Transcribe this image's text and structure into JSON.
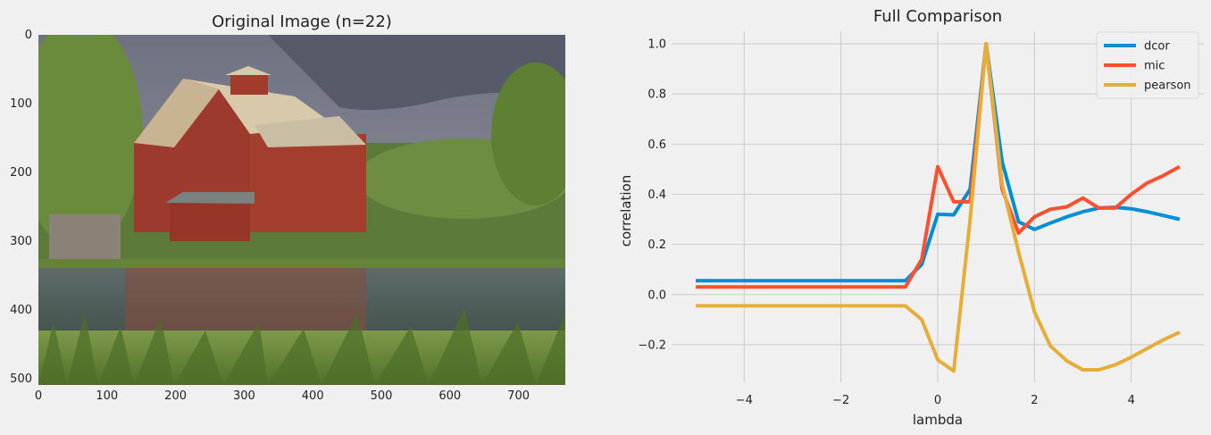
{
  "left_panel": {
    "title": "Original Image (n=22)",
    "image_description_icon": "barn-landscape-photo",
    "xticks": [
      "0",
      "100",
      "200",
      "300",
      "400",
      "500",
      "600",
      "700"
    ],
    "yticks": [
      "0",
      "100",
      "200",
      "300",
      "400",
      "500"
    ]
  },
  "chart_data": {
    "type": "line",
    "title": "Full Comparison",
    "xlabel": "lambda",
    "ylabel": "correlation",
    "xlim": [
      -5.5,
      5.5
    ],
    "ylim": [
      -0.35,
      1.05
    ],
    "xticks": [
      -4,
      -2,
      0,
      2,
      4
    ],
    "xtick_labels": [
      "−4",
      "−2",
      "0",
      "2",
      "4"
    ],
    "yticks": [
      -0.2,
      0.0,
      0.2,
      0.4,
      0.6,
      0.8,
      1.0
    ],
    "ytick_labels": [
      "−0.2",
      "0.0",
      "0.2",
      "0.4",
      "0.6",
      "0.8",
      "1.0"
    ],
    "grid": true,
    "legend_position": "top-right",
    "x": [
      -5.0,
      -4.67,
      -4.33,
      -4.0,
      -3.67,
      -3.33,
      -3.0,
      -2.67,
      -2.33,
      -2.0,
      -1.67,
      -1.33,
      -1.0,
      -0.67,
      -0.33,
      0.0,
      0.33,
      0.67,
      1.0,
      1.33,
      1.67,
      2.0,
      2.33,
      2.67,
      3.0,
      3.33,
      3.67,
      4.0,
      4.33,
      4.67,
      5.0
    ],
    "series": [
      {
        "name": "dcor",
        "color": "#008fd5",
        "values": [
          0.055,
          0.055,
          0.055,
          0.055,
          0.055,
          0.055,
          0.055,
          0.055,
          0.055,
          0.055,
          0.055,
          0.055,
          0.055,
          0.055,
          0.12,
          0.32,
          0.318,
          0.42,
          1.0,
          0.53,
          0.29,
          0.26,
          0.285,
          0.31,
          0.33,
          0.345,
          0.348,
          0.342,
          0.33,
          0.315,
          0.3
        ]
      },
      {
        "name": "mic",
        "color": "#fc4f30",
        "values": [
          0.03,
          0.03,
          0.03,
          0.03,
          0.03,
          0.03,
          0.03,
          0.03,
          0.03,
          0.03,
          0.03,
          0.03,
          0.03,
          0.03,
          0.14,
          0.51,
          0.37,
          0.37,
          1.0,
          0.42,
          0.245,
          0.31,
          0.34,
          0.35,
          0.385,
          0.345,
          0.345,
          0.4,
          0.445,
          0.475,
          0.51
        ]
      },
      {
        "name": "pearson",
        "color": "#e5ae38",
        "values": [
          -0.045,
          -0.045,
          -0.045,
          -0.045,
          -0.045,
          -0.045,
          -0.045,
          -0.045,
          -0.045,
          -0.045,
          -0.045,
          -0.045,
          -0.045,
          -0.045,
          -0.1,
          -0.26,
          -0.305,
          0.3,
          1.0,
          0.44,
          0.17,
          -0.07,
          -0.205,
          -0.265,
          -0.3,
          -0.3,
          -0.28,
          -0.25,
          -0.215,
          -0.18,
          -0.15
        ]
      }
    ]
  }
}
